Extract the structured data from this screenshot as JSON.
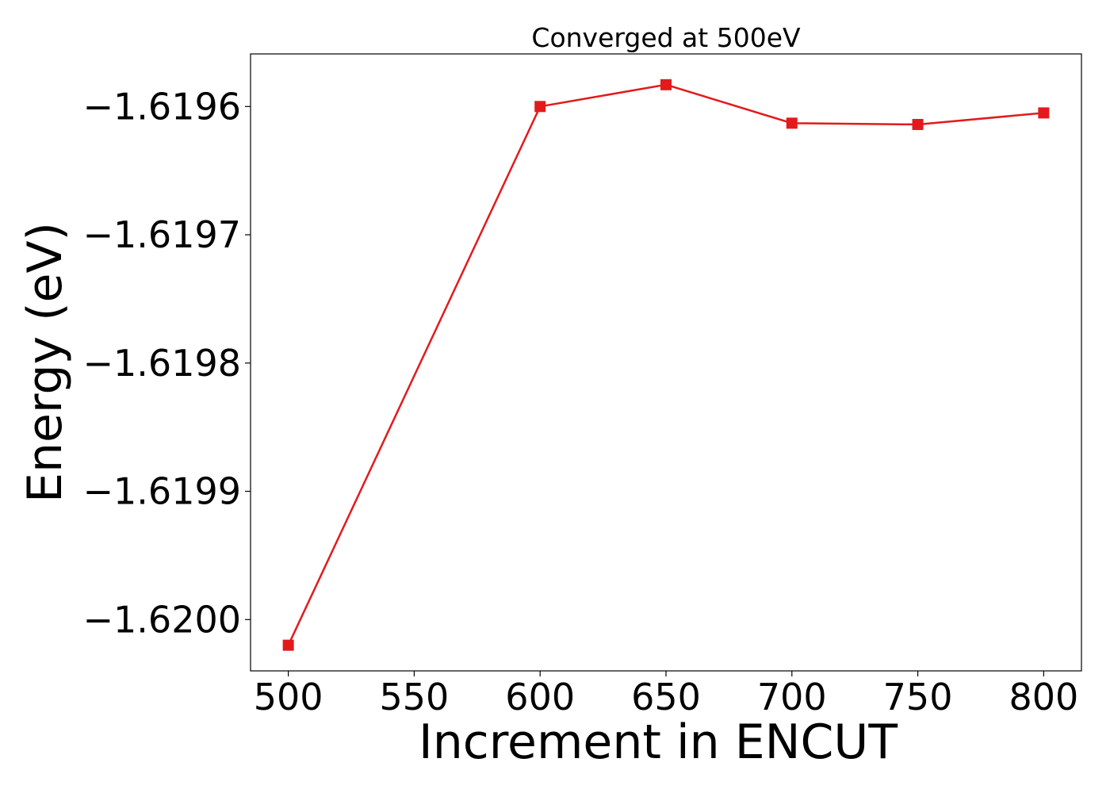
{
  "chart_data": {
    "type": "line",
    "title": "Converged at 500eV",
    "xlabel": "Increment in ENCUT",
    "ylabel": "Energy (eV)",
    "x": [
      500,
      600,
      650,
      700,
      750,
      800
    ],
    "series": [
      {
        "values": [
          -1.62002,
          -1.6196,
          -1.619583,
          -1.619613,
          -1.619614,
          -1.619605
        ],
        "color": "#e31a1c",
        "marker": "square"
      }
    ],
    "xlim": [
      485,
      815
    ],
    "ylim": [
      -1.62004,
      -1.619559
    ],
    "xticks": [
      500,
      550,
      600,
      650,
      700,
      750,
      800
    ],
    "xtick_labels": [
      "500",
      "550",
      "600",
      "650",
      "700",
      "750",
      "800"
    ],
    "yticks": [
      -1.6196,
      -1.6197,
      -1.6198,
      -1.6199,
      -1.62
    ],
    "ytick_labels": [
      "−1.6196",
      "−1.6197",
      "−1.6198",
      "−1.6199",
      "−1.6200"
    ],
    "grid": false,
    "legend": "none"
  }
}
